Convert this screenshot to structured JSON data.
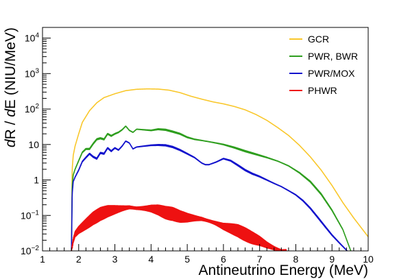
{
  "chart_data": {
    "type": "line",
    "title": "",
    "xlabel": "Antineutrino Energy (MeV)",
    "ylabel": "dR / dE (NIU/MeV)",
    "ylabel_parts": {
      "d1": "d",
      "r": "R",
      "slash": " / ",
      "d2": "d",
      "e": "E",
      "unit": " (NIU/MeV)"
    },
    "xlim": [
      1,
      10
    ],
    "ylim": [
      0.01,
      20000
    ],
    "yscale": "log",
    "x_ticks": [
      "1",
      "2",
      "3",
      "4",
      "5",
      "6",
      "7",
      "8",
      "9",
      "10"
    ],
    "y_ticks": [
      {
        "value": 0.01,
        "base": "10",
        "exp": "−2"
      },
      {
        "value": 0.1,
        "base": "10",
        "exp": "−1"
      },
      {
        "value": 1,
        "base": "1",
        "exp": ""
      },
      {
        "value": 10,
        "base": "10",
        "exp": ""
      },
      {
        "value": 100,
        "base": "10",
        "exp": "2"
      },
      {
        "value": 1000,
        "base": "10",
        "exp": "3"
      },
      {
        "value": 10000,
        "base": "10",
        "exp": "4"
      }
    ],
    "grid": false,
    "legend_position": "top-right",
    "series": [
      {
        "name": "GCR",
        "color": "#f9c72a",
        "ripple": 0,
        "x": [
          1.8,
          1.82,
          1.85,
          1.9,
          2.0,
          2.1,
          2.3,
          2.5,
          2.7,
          3.0,
          3.3,
          3.6,
          3.9,
          4.2,
          4.5,
          4.8,
          5.1,
          5.4,
          5.7,
          6.0,
          6.3,
          6.6,
          6.9,
          7.2,
          7.5,
          7.8,
          8.1,
          8.4,
          8.7,
          9.0,
          9.3,
          9.6,
          10.0
        ],
        "y": [
          0.01,
          2,
          5,
          9,
          20,
          42,
          90,
          150,
          210,
          270,
          330,
          360,
          370,
          365,
          340,
          290,
          230,
          190,
          160,
          140,
          118,
          95,
          70,
          48,
          30,
          18,
          9.5,
          4.5,
          1.9,
          0.7,
          0.23,
          0.085,
          0.025
        ]
      },
      {
        "name": "PWR, BWR",
        "color": "#2e9e1e",
        "ripple": 0.04,
        "x": [
          1.8,
          1.82,
          1.85,
          1.9,
          2.0,
          2.1,
          2.2,
          2.3,
          2.4,
          2.5,
          2.6,
          2.7,
          2.8,
          2.9,
          3.0,
          3.1,
          3.2,
          3.3,
          3.4,
          3.5,
          3.6,
          3.8,
          4.0,
          4.2,
          4.4,
          4.6,
          4.8,
          5.0,
          5.2,
          5.4,
          5.6,
          5.8,
          6.0,
          6.3,
          6.6,
          6.9,
          7.2,
          7.5,
          7.8,
          8.1,
          8.4,
          8.7,
          9.0,
          9.3,
          9.52
        ],
        "y": [
          0.01,
          0.7,
          1.4,
          2.0,
          3.5,
          6.0,
          7.5,
          7.5,
          10.5,
          14.0,
          15.0,
          14.0,
          20.0,
          17.5,
          20.0,
          22.0,
          26.0,
          33.0,
          25.0,
          22.0,
          27.0,
          26.0,
          25.0,
          27.0,
          26.0,
          23.0,
          20.0,
          16.0,
          14.0,
          13.0,
          12.0,
          11.0,
          10.0,
          8.2,
          6.5,
          5.3,
          4.3,
          3.4,
          2.5,
          1.6,
          0.9,
          0.4,
          0.14,
          0.04,
          0.01
        ]
      },
      {
        "name": "PWR/MOX",
        "color": "#1111cc",
        "ripple": 0.04,
        "x": [
          1.8,
          1.82,
          1.85,
          1.9,
          2.0,
          2.1,
          2.2,
          2.3,
          2.4,
          2.5,
          2.6,
          2.7,
          2.8,
          2.9,
          3.0,
          3.1,
          3.2,
          3.3,
          3.4,
          3.5,
          3.6,
          3.8,
          4.0,
          4.2,
          4.4,
          4.6,
          4.8,
          5.0,
          5.2,
          5.4,
          5.5,
          5.6,
          5.8,
          6.0,
          6.2,
          6.4,
          6.6,
          6.8,
          7.0,
          7.2,
          7.4,
          7.6,
          7.8,
          8.0,
          8.2,
          8.4,
          8.6,
          8.8,
          9.0,
          9.2,
          9.42
        ],
        "y": [
          0.01,
          0.4,
          0.9,
          1.2,
          1.9,
          3.3,
          4.3,
          5.5,
          4.5,
          4.0,
          5.8,
          5.5,
          8.0,
          6.5,
          8.0,
          7.0,
          9.0,
          12.5,
          11.0,
          7.5,
          8.5,
          9.0,
          9.5,
          9.7,
          9.5,
          8.5,
          7.0,
          5.5,
          4.3,
          3.0,
          2.7,
          2.7,
          3.2,
          4.0,
          3.5,
          2.6,
          1.9,
          1.5,
          1.25,
          1.0,
          0.8,
          0.65,
          0.5,
          0.38,
          0.26,
          0.16,
          0.09,
          0.05,
          0.028,
          0.017,
          0.01
        ]
      },
      {
        "name": "PHWR",
        "color": "#ee1111",
        "ripple": 0.4,
        "x": [
          1.8,
          1.85,
          1.9,
          2.0,
          2.2,
          2.4,
          2.6,
          2.8,
          3.0,
          3.2,
          3.4,
          3.6,
          3.8,
          4.0,
          4.2,
          4.4,
          4.6,
          4.8,
          5.0,
          5.2,
          5.4,
          5.6,
          5.8,
          6.0,
          6.2,
          6.4,
          6.6,
          6.8,
          7.0,
          7.2,
          7.4,
          7.6,
          7.75
        ],
        "y": [
          0.01,
          0.02,
          0.03,
          0.04,
          0.06,
          0.09,
          0.12,
          0.14,
          0.15,
          0.16,
          0.17,
          0.16,
          0.16,
          0.16,
          0.15,
          0.13,
          0.12,
          0.1,
          0.09,
          0.085,
          0.08,
          0.07,
          0.06,
          0.05,
          0.045,
          0.04,
          0.032,
          0.025,
          0.02,
          0.015,
          0.012,
          0.01,
          0.01
        ]
      }
    ]
  }
}
